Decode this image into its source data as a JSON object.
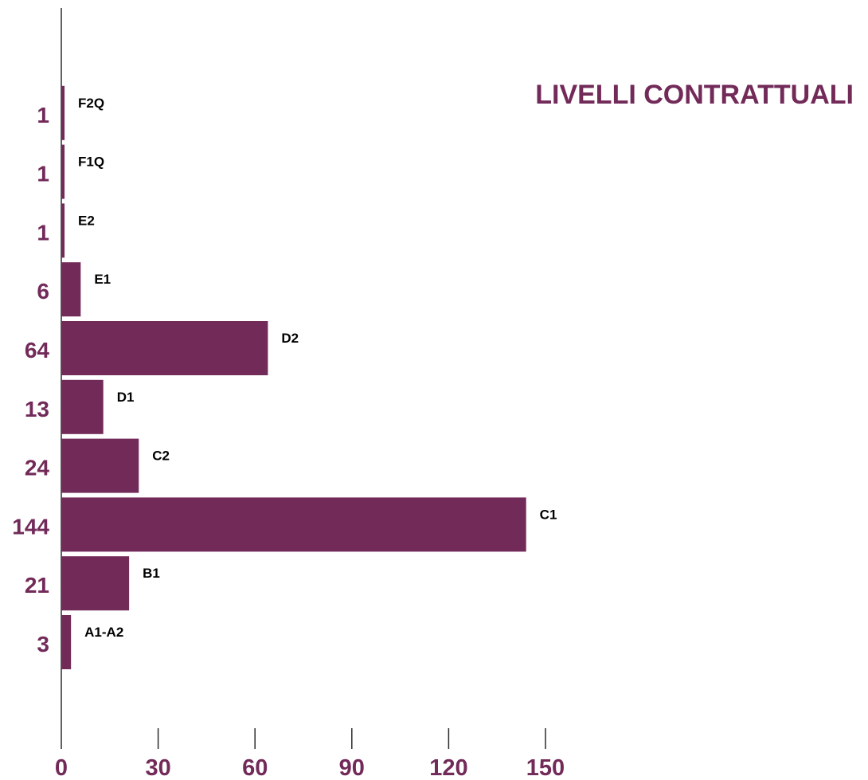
{
  "chart_data": {
    "type": "bar",
    "orientation": "horizontal",
    "title": "LIVELLI CONTRATTUALI",
    "categories": [
      "A1-A2",
      "B1",
      "C1",
      "C2",
      "D1",
      "D2",
      "E1",
      "E2",
      "F1Q",
      "F2Q"
    ],
    "values": [
      3,
      21,
      144,
      24,
      13,
      64,
      6,
      1,
      1,
      1
    ],
    "value_axis_ticks": [
      "0",
      "30",
      "60",
      "90",
      "120",
      "150"
    ],
    "xlim": [
      0,
      150
    ],
    "grid": false,
    "legend": "none",
    "colors": {
      "bar": "#722a59",
      "value_labels": "#722a59",
      "category_labels": "#000000",
      "axis": "#2b2b2b"
    }
  }
}
